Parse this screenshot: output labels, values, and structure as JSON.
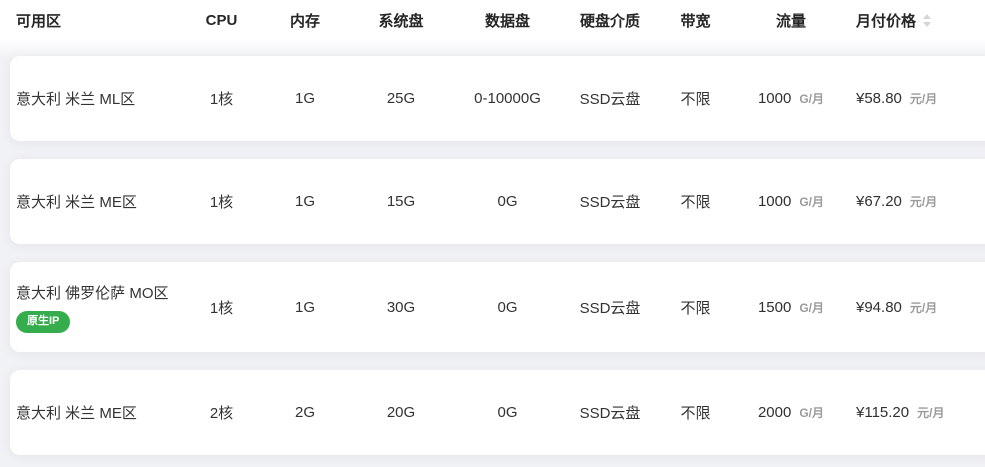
{
  "table": {
    "columns": [
      {
        "key": "zone",
        "label": "可用区"
      },
      {
        "key": "cpu",
        "label": "CPU"
      },
      {
        "key": "memory",
        "label": "内存"
      },
      {
        "key": "system_disk",
        "label": "系统盘"
      },
      {
        "key": "data_disk",
        "label": "数据盘"
      },
      {
        "key": "disk_media",
        "label": "硬盘介质"
      },
      {
        "key": "bandwidth",
        "label": "带宽"
      },
      {
        "key": "traffic",
        "label": "流量"
      },
      {
        "key": "price",
        "label": "月付价格",
        "sortable": true
      }
    ],
    "rows": [
      {
        "zone": "意大利 米兰 ML区",
        "badge": "",
        "cpu": "1核",
        "memory": "1G",
        "system_disk": "25G",
        "data_disk": "0-10000G",
        "disk_media": "SSD云盘",
        "bandwidth": "不限",
        "traffic": "1000",
        "traffic_unit": "G/月",
        "price": "¥58.80",
        "price_unit": "元/月"
      },
      {
        "zone": "意大利 米兰 ME区",
        "badge": "",
        "cpu": "1核",
        "memory": "1G",
        "system_disk": "15G",
        "data_disk": "0G",
        "disk_media": "SSD云盘",
        "bandwidth": "不限",
        "traffic": "1000",
        "traffic_unit": "G/月",
        "price": "¥67.20",
        "price_unit": "元/月"
      },
      {
        "zone": "意大利 佛罗伦萨 MO区",
        "badge": "原生IP",
        "cpu": "1核",
        "memory": "1G",
        "system_disk": "30G",
        "data_disk": "0G",
        "disk_media": "SSD云盘",
        "bandwidth": "不限",
        "traffic": "1500",
        "traffic_unit": "G/月",
        "price": "¥94.80",
        "price_unit": "元/月"
      },
      {
        "zone": "意大利 米兰 ME区",
        "badge": "",
        "cpu": "2核",
        "memory": "2G",
        "system_disk": "20G",
        "data_disk": "0G",
        "disk_media": "SSD云盘",
        "bandwidth": "不限",
        "traffic": "2000",
        "traffic_unit": "G/月",
        "price": "¥115.20",
        "price_unit": "元/月"
      }
    ]
  },
  "colors": {
    "badge_green": "#35ad4c",
    "card_bg": "#ffffff",
    "page_bg": "#f1f2f5",
    "unit_gray": "#9b9b9b",
    "text_dark": "#262626",
    "sorter_gray": "#d2d5da"
  }
}
